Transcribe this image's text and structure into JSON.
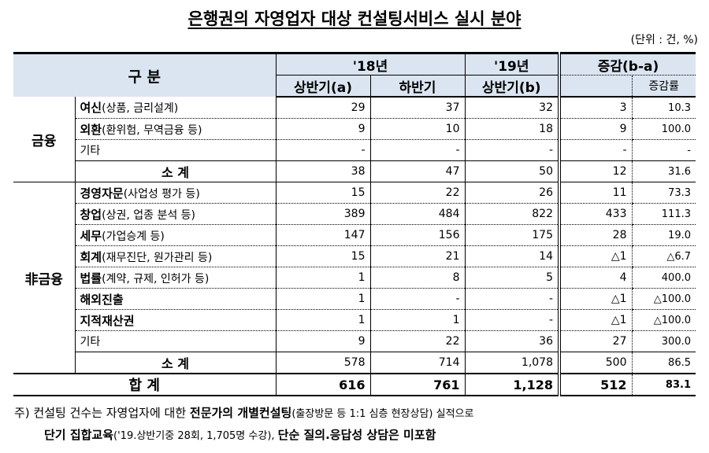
{
  "title": "은행권의 자영업자 대상 컨설팅서비스 실시 분야",
  "unit": "(단위 : 건, %)",
  "header": {
    "category": "구 분",
    "y18": "'18년",
    "y19": "'19년",
    "change": "증감(b-a)",
    "h1a": "상반기(a)",
    "h2": "하반기",
    "h1b": "상반기(b)",
    "rate": "증감률"
  },
  "groups": [
    {
      "name": "금융",
      "rows": [
        {
          "bold": "여신",
          "rest": "(상품, 금리설계)",
          "v": [
            "29",
            "37",
            "32",
            "3",
            "10.3"
          ]
        },
        {
          "bold": "외환",
          "rest": "(환위험, 무역금융 등)",
          "v": [
            "9",
            "10",
            "18",
            "9",
            "100.0"
          ]
        },
        {
          "bold": "",
          "rest": "기타",
          "v": [
            "-",
            "-",
            "-",
            "-",
            "-"
          ]
        }
      ],
      "subtotal": {
        "label": "소 계",
        "v": [
          "38",
          "47",
          "50",
          "12",
          "31.6"
        ]
      }
    },
    {
      "name": "非금융",
      "rows": [
        {
          "bold": "경영자문",
          "rest": "(사업성 평가 등)",
          "v": [
            "15",
            "22",
            "26",
            "11",
            "73.3"
          ]
        },
        {
          "bold": "창업",
          "rest": "(상권, 업종 분석 등)",
          "v": [
            "389",
            "484",
            "822",
            "433",
            "111.3"
          ]
        },
        {
          "bold": "세무",
          "rest": "(가업승계 등)",
          "v": [
            "147",
            "156",
            "175",
            "28",
            "19.0"
          ]
        },
        {
          "bold": "회계",
          "rest": "(재무진단, 원가관리 등)",
          "v": [
            "15",
            "21",
            "14",
            "△1",
            "△6.7"
          ]
        },
        {
          "bold": "법률",
          "rest": "(계약, 규제, 인허가 등)",
          "v": [
            "1",
            "8",
            "5",
            "4",
            "400.0"
          ]
        },
        {
          "bold": "해외진출",
          "rest": "",
          "v": [
            "1",
            "-",
            "-",
            "△1",
            "△100.0"
          ]
        },
        {
          "bold": "지적재산권",
          "rest": "",
          "v": [
            "1",
            "1",
            "-",
            "△1",
            "△100.0"
          ]
        },
        {
          "bold": "",
          "rest": "기타",
          "v": [
            "9",
            "22",
            "36",
            "27",
            "300.0"
          ]
        }
      ],
      "subtotal": {
        "label": "소 계",
        "v": [
          "578",
          "714",
          "1,078",
          "500",
          "86.5"
        ]
      }
    }
  ],
  "total": {
    "label": "합 계",
    "v": [
      "616",
      "761",
      "1,128",
      "512",
      "83.1"
    ]
  },
  "note": {
    "p1": "주) 컨설팅 건수는 자영업자에 대한 ",
    "b1": "전문가의 개별컨설팅",
    "p2": "(출장방문 등 1:1 심층 현장상담) 실적으로",
    "b2": "단기 집합교육",
    "p3": "('19.상반기중 28회, 1,705명 수강), ",
    "b3": "단순 질의.응답성 상담은 미포함"
  }
}
